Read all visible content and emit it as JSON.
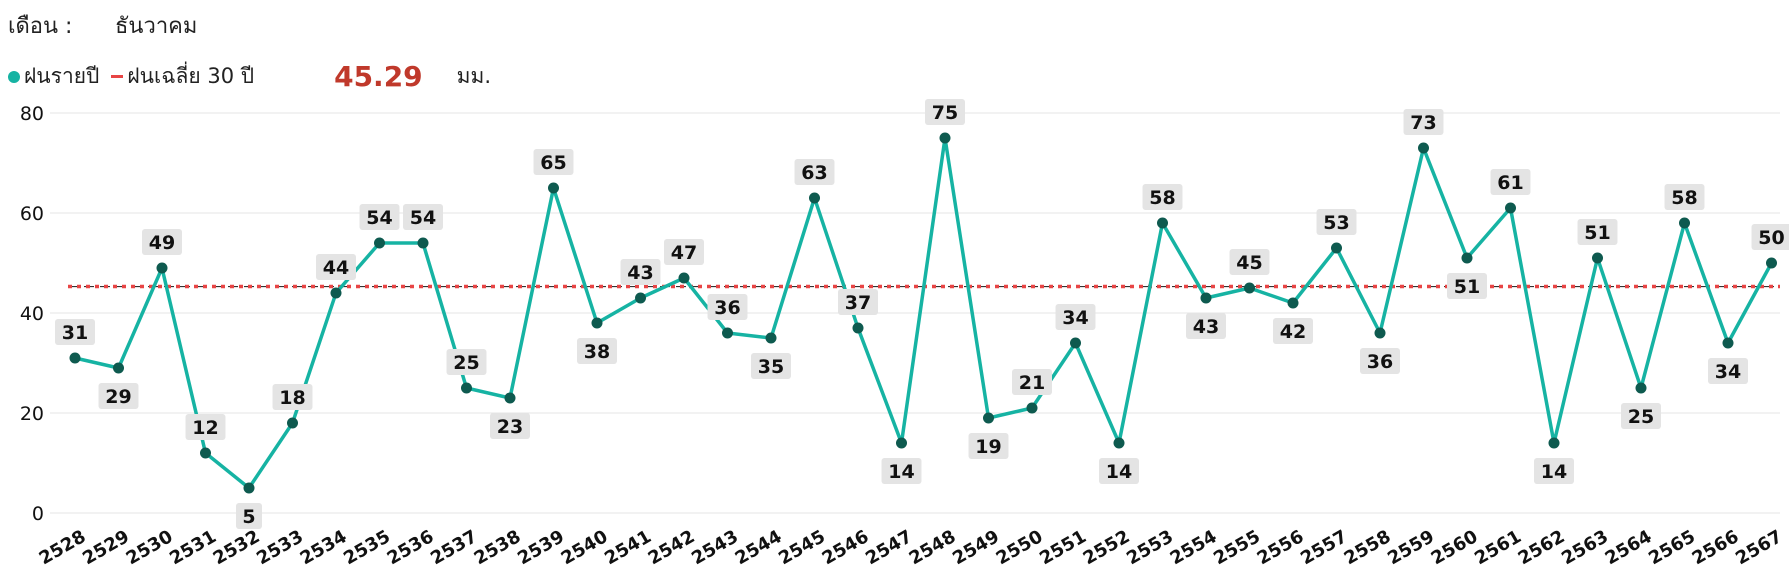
{
  "header": {
    "label": "เดือน :",
    "month": "ธันวาคม"
  },
  "legend": {
    "annual_label": "ฝนรายปี",
    "average_label": "ฝนเฉลี่ย 30 ปี",
    "average_value": "45.29",
    "unit": "มม."
  },
  "colors": {
    "line": "#16b3a3",
    "marker": "#0e5a4f",
    "average": "#e84545",
    "avg_text": "#c0392b",
    "label_bg": "#e4e4e4"
  },
  "chart_data": {
    "type": "line",
    "categories": [
      "2528",
      "2529",
      "2530",
      "2531",
      "2532",
      "2533",
      "2534",
      "2535",
      "2536",
      "2537",
      "2538",
      "2539",
      "2540",
      "2541",
      "2542",
      "2543",
      "2544",
      "2545",
      "2546",
      "2547",
      "2548",
      "2549",
      "2550",
      "2551",
      "2552",
      "2553",
      "2554",
      "2555",
      "2556",
      "2557",
      "2558",
      "2559",
      "2560",
      "2561",
      "2562",
      "2563",
      "2564",
      "2565",
      "2566",
      "2567"
    ],
    "series": [
      {
        "name": "ฝนรายปี",
        "values": [
          31,
          29,
          49,
          12,
          5,
          18,
          44,
          54,
          54,
          25,
          23,
          65,
          38,
          43,
          47,
          36,
          35,
          63,
          37,
          14,
          75,
          19,
          21,
          34,
          14,
          58,
          43,
          45,
          42,
          53,
          36,
          73,
          51,
          61,
          14,
          51,
          25,
          58,
          34,
          50
        ]
      },
      {
        "name": "ฝนเฉลี่ย 30 ปี",
        "value": 45.29
      }
    ],
    "ylim": [
      0,
      80
    ],
    "yticks": [
      0,
      20,
      40,
      60,
      80
    ],
    "grid": true,
    "legend_position": "top-left"
  }
}
